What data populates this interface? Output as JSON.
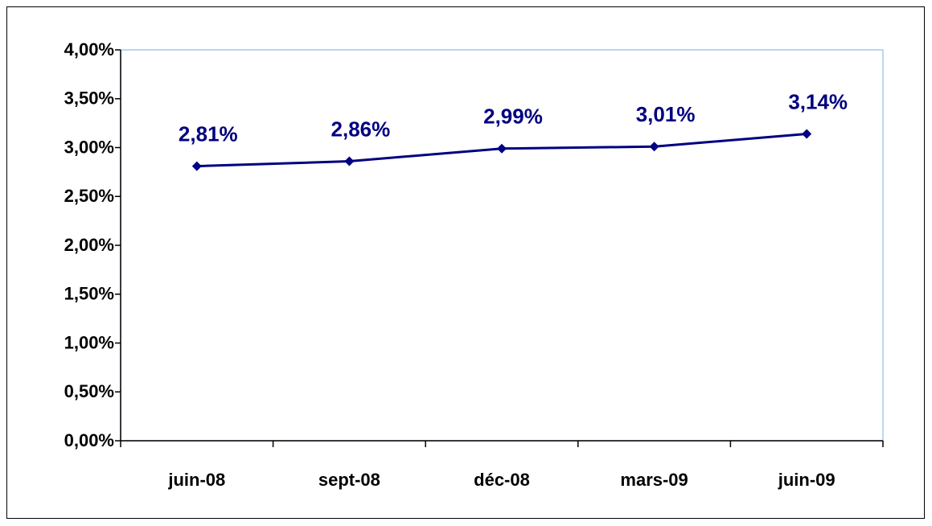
{
  "chart_data": {
    "type": "line",
    "categories": [
      "juin-08",
      "sept-08",
      "déc-08",
      "mars-09",
      "juin-09"
    ],
    "values": [
      2.81,
      2.86,
      2.99,
      3.01,
      3.14
    ],
    "value_labels": [
      "2,81%",
      "2,86%",
      "2,99%",
      "3,01%",
      "3,14%"
    ],
    "color": "#000080",
    "ylim": [
      0,
      4
    ],
    "yticks": [
      {
        "value": 0,
        "label": "0,00%"
      },
      {
        "value": 0.5,
        "label": "0,50%"
      },
      {
        "value": 1,
        "label": "1,00%"
      },
      {
        "value": 1.5,
        "label": "1,50%"
      },
      {
        "value": 2,
        "label": "2,00%"
      },
      {
        "value": 2.5,
        "label": "2,50%"
      },
      {
        "value": 3,
        "label": "3,00%"
      },
      {
        "value": 3.5,
        "label": "3,50%"
      },
      {
        "value": 4,
        "label": "4,00%"
      }
    ],
    "grid": false
  }
}
